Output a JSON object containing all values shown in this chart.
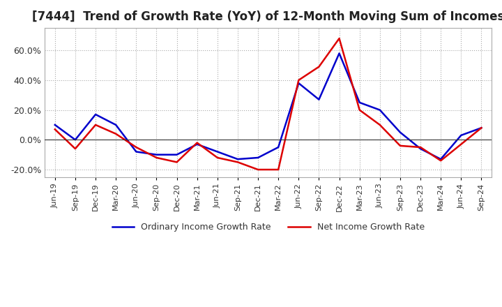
{
  "title": "[7444]  Trend of Growth Rate (YoY) of 12-Month Moving Sum of Incomes",
  "title_fontsize": 12,
  "ylim": [
    -0.25,
    0.75
  ],
  "yticks": [
    -0.2,
    0.0,
    0.2,
    0.4,
    0.6
  ],
  "ytick_labels": [
    "-20.0%",
    "0.0%",
    "20.0%",
    "40.0%",
    "60.0%"
  ],
  "background_color": "#ffffff",
  "grid_color": "#aaaaaa",
  "ordinary_color": "#0000cc",
  "net_color": "#dd0000",
  "legend_labels": [
    "Ordinary Income Growth Rate",
    "Net Income Growth Rate"
  ],
  "x_labels": [
    "Jun-19",
    "Sep-19",
    "Dec-19",
    "Mar-20",
    "Jun-20",
    "Sep-20",
    "Dec-20",
    "Mar-21",
    "Jun-21",
    "Sep-21",
    "Dec-21",
    "Mar-22",
    "Jun-22",
    "Sep-22",
    "Dec-22",
    "Mar-23",
    "Jun-23",
    "Sep-23",
    "Dec-23",
    "Mar-24",
    "Jun-24",
    "Sep-24"
  ],
  "ordinary_income": [
    0.1,
    0.0,
    0.17,
    0.1,
    -0.08,
    -0.1,
    -0.1,
    -0.03,
    -0.08,
    -0.13,
    -0.12,
    -0.05,
    0.38,
    0.27,
    0.58,
    0.25,
    0.2,
    0.05,
    -0.06,
    -0.13,
    0.03,
    0.08
  ],
  "net_income": [
    0.07,
    -0.06,
    0.1,
    0.04,
    -0.05,
    -0.12,
    -0.15,
    -0.02,
    -0.12,
    -0.15,
    -0.2,
    -0.2,
    0.4,
    0.49,
    0.68,
    0.2,
    0.1,
    -0.04,
    -0.05,
    -0.14,
    -0.03,
    0.08
  ]
}
